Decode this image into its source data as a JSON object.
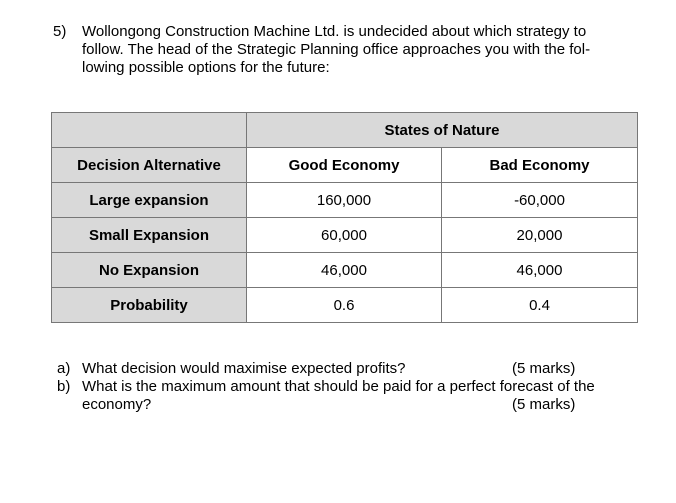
{
  "question": {
    "number": "5)",
    "lines": [
      "Wollongong Construction Machine Ltd. is undecided about which strategy to",
      "follow. The head of the Strategic Planning office approaches you with the fol-",
      "lowing possible options for the future:"
    ]
  },
  "table": {
    "group_header": "States of Nature",
    "columns": [
      "Decision Alternative",
      "Good Economy",
      "Bad Economy"
    ],
    "rows": [
      {
        "label": "Large expansion",
        "good": "160,000",
        "bad": "-60,000"
      },
      {
        "label": "Small Expansion",
        "good": "60,000",
        "bad": "20,000"
      },
      {
        "label": "No Expansion",
        "good": "46,000",
        "bad": "46,000"
      },
      {
        "label": "Probability",
        "good": "0.6",
        "bad": "0.4"
      }
    ]
  },
  "parts": [
    {
      "label": "a)",
      "text": "What decision would maximise expected profits?",
      "marks": "(5 marks)"
    },
    {
      "label": "b)",
      "text_lines": [
        "What is the maximum amount that should be paid for a perfect forecast of the",
        "economy?"
      ],
      "marks": "(5 marks)"
    }
  ],
  "colors": {
    "header_fill": "#d9d9d9",
    "border": "#777777"
  }
}
